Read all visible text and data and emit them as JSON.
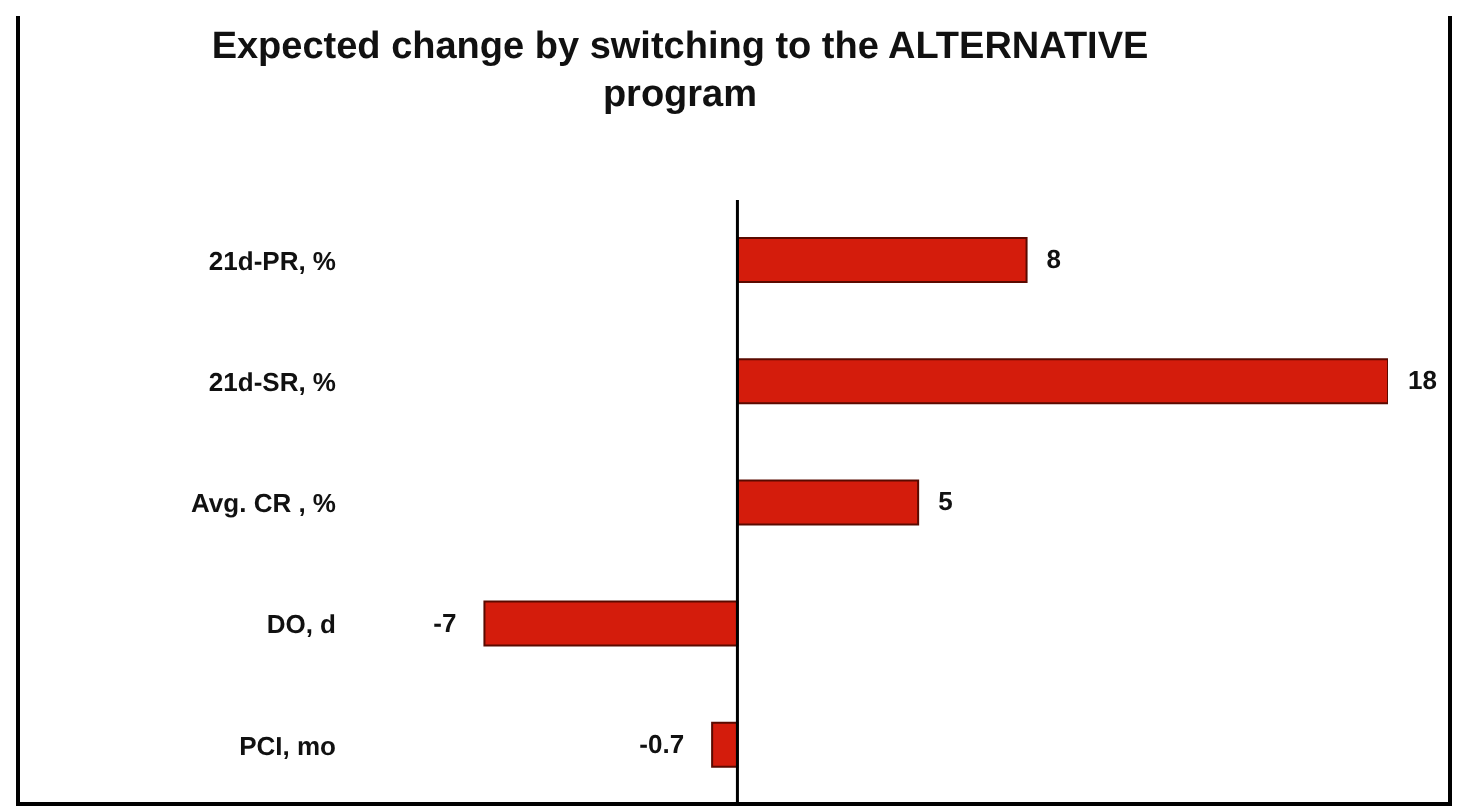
{
  "chart_data": {
    "type": "bar",
    "orientation": "horizontal",
    "title": "Expected change by switching to the ALTERNATIVE program",
    "categories": [
      "21d-PR, %",
      "21d-SR, %",
      "Avg. CR , %",
      "DO, d",
      "PCI, mo"
    ],
    "values": [
      8,
      18,
      5,
      -7,
      -0.7
    ],
    "color": "#d41c0c",
    "data_labels": true
  }
}
